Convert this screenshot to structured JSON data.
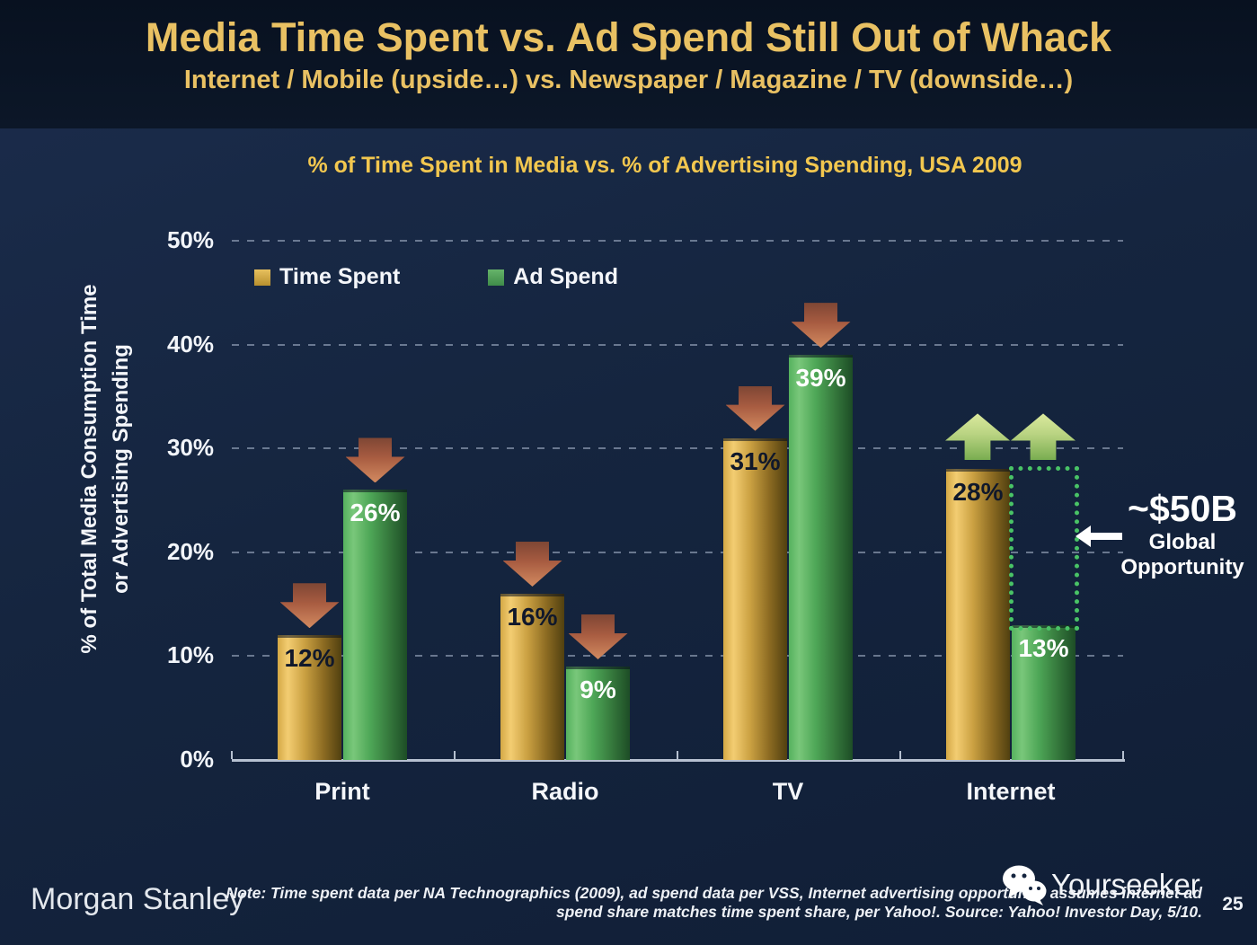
{
  "slide": {
    "title": "Media Time Spent vs. Ad Spend Still Out of Whack",
    "subtitle": "Internet / Mobile (upside…) vs. Newspaper / Magazine / TV (downside…)"
  },
  "chart": {
    "title": "% of Time Spent in Media vs. % of Advertising Spending, USA 2009",
    "y_axis_title_line1": "% of Total Media Consumption Time",
    "y_axis_title_line2": "or Advertising Spending",
    "legend": {
      "time_spent": "Time Spent",
      "ad_spend": "Ad Spend"
    }
  },
  "chart_data": {
    "type": "bar",
    "title": "% of Time Spent in Media vs. % of Advertising Spending, USA 2009",
    "ylabel": "% of Total Media Consumption Time or Advertising Spending",
    "categories": [
      "Print",
      "Radio",
      "TV",
      "Internet"
    ],
    "series": [
      {
        "name": "Time Spent",
        "color": "#d9a945",
        "values": [
          12,
          16,
          31,
          28
        ]
      },
      {
        "name": "Ad Spend",
        "color": "#55a85e",
        "values": [
          26,
          9,
          39,
          13
        ]
      }
    ],
    "value_label_suffix": "%",
    "ylim": [
      0,
      50
    ],
    "ytick_step": 10,
    "grid": "dashed-horizontal",
    "legend_position": "top-left",
    "trend_arrows": {
      "Print": "down",
      "Radio": "down",
      "TV": "down",
      "Internet": "up"
    },
    "arrow_colors": {
      "down": "#c0714f",
      "up": "#a8c873"
    },
    "opportunity_box": {
      "category": "Internet",
      "from_value": 13,
      "to_value": 28,
      "border_color": "#49c366"
    }
  },
  "annotation": {
    "value": "~$50B",
    "label_line1": "Global",
    "label_line2": "Opportunity"
  },
  "footer": {
    "brand": "Morgan Stanley",
    "note_line1": "Note: Time spent data per NA Technographics (2009), ad spend data per VSS, Internet advertising opportunity assumes internet ad",
    "note_line2": "spend share matches time spent share, per Yahoo!. Source: Yahoo! Investor Day, 5/10.",
    "watermark": "Yourseeker",
    "page_number": "25"
  }
}
